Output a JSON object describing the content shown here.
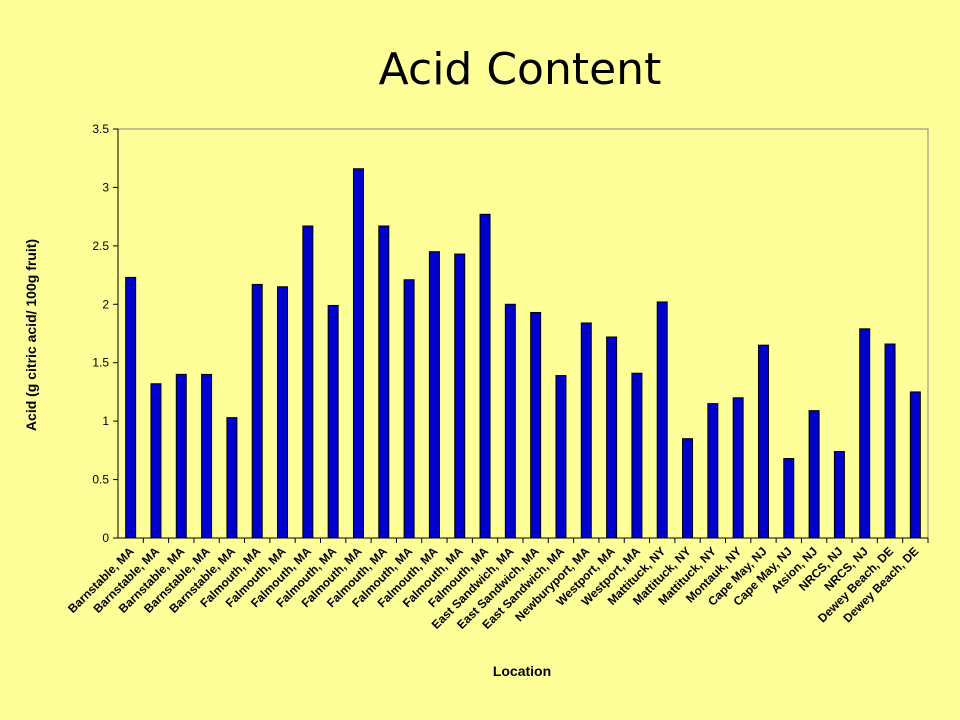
{
  "slide": {
    "title": "Acid Content"
  },
  "colors": {
    "background": "#FFFF99",
    "bar": "#0000CC",
    "bar_border": "#000000"
  },
  "chart_data": {
    "type": "bar",
    "title": "Acid Content",
    "xlabel": "Location",
    "ylabel": "Acid (g citric acid/ 100g fruit)",
    "ylim": [
      0,
      3.5
    ],
    "yticks": [
      "0",
      "0.5",
      "1",
      "1.5",
      "2",
      "2.5",
      "3",
      "3.5"
    ],
    "grid": false,
    "legend": "none",
    "categories": [
      "Barnstable, MA",
      "Barnstable, MA",
      "Barnstable, MA",
      "Barnstable, MA",
      "Barnstable, MA",
      "Falmouth, MA",
      "Falmouth, MA",
      "Falmouth, MA",
      "Falmouth, MA",
      "Falmouth, MA",
      "Falmouth, MA",
      "Falmouth, MA",
      "Falmouth, MA",
      "Falmouth, MA",
      "Falmouth, MA",
      "East Sandwich, MA",
      "East Sandwich, MA",
      "East Sandwich, MA",
      "Newburyport, MA",
      "Westport, MA",
      "Westport, MA",
      "Mattituck, NY",
      "Mattituck, NY",
      "Mattituck, NY",
      "Montauk, NY",
      "Cape May, NJ",
      "Cape May, NJ",
      "Atsion, NJ",
      "NRCS, NJ",
      "NRCS, NJ",
      "Dewey Beach, DE",
      "Dewey Beach, DE"
    ],
    "values": [
      2.23,
      1.32,
      1.4,
      1.4,
      1.03,
      2.17,
      2.15,
      2.67,
      1.99,
      3.16,
      2.67,
      2.21,
      2.45,
      2.43,
      2.77,
      2.0,
      1.93,
      1.39,
      1.84,
      1.72,
      1.41,
      2.02,
      0.85,
      1.15,
      1.2,
      1.65,
      0.68,
      1.09,
      0.74,
      1.79,
      1.66,
      1.25
    ]
  }
}
